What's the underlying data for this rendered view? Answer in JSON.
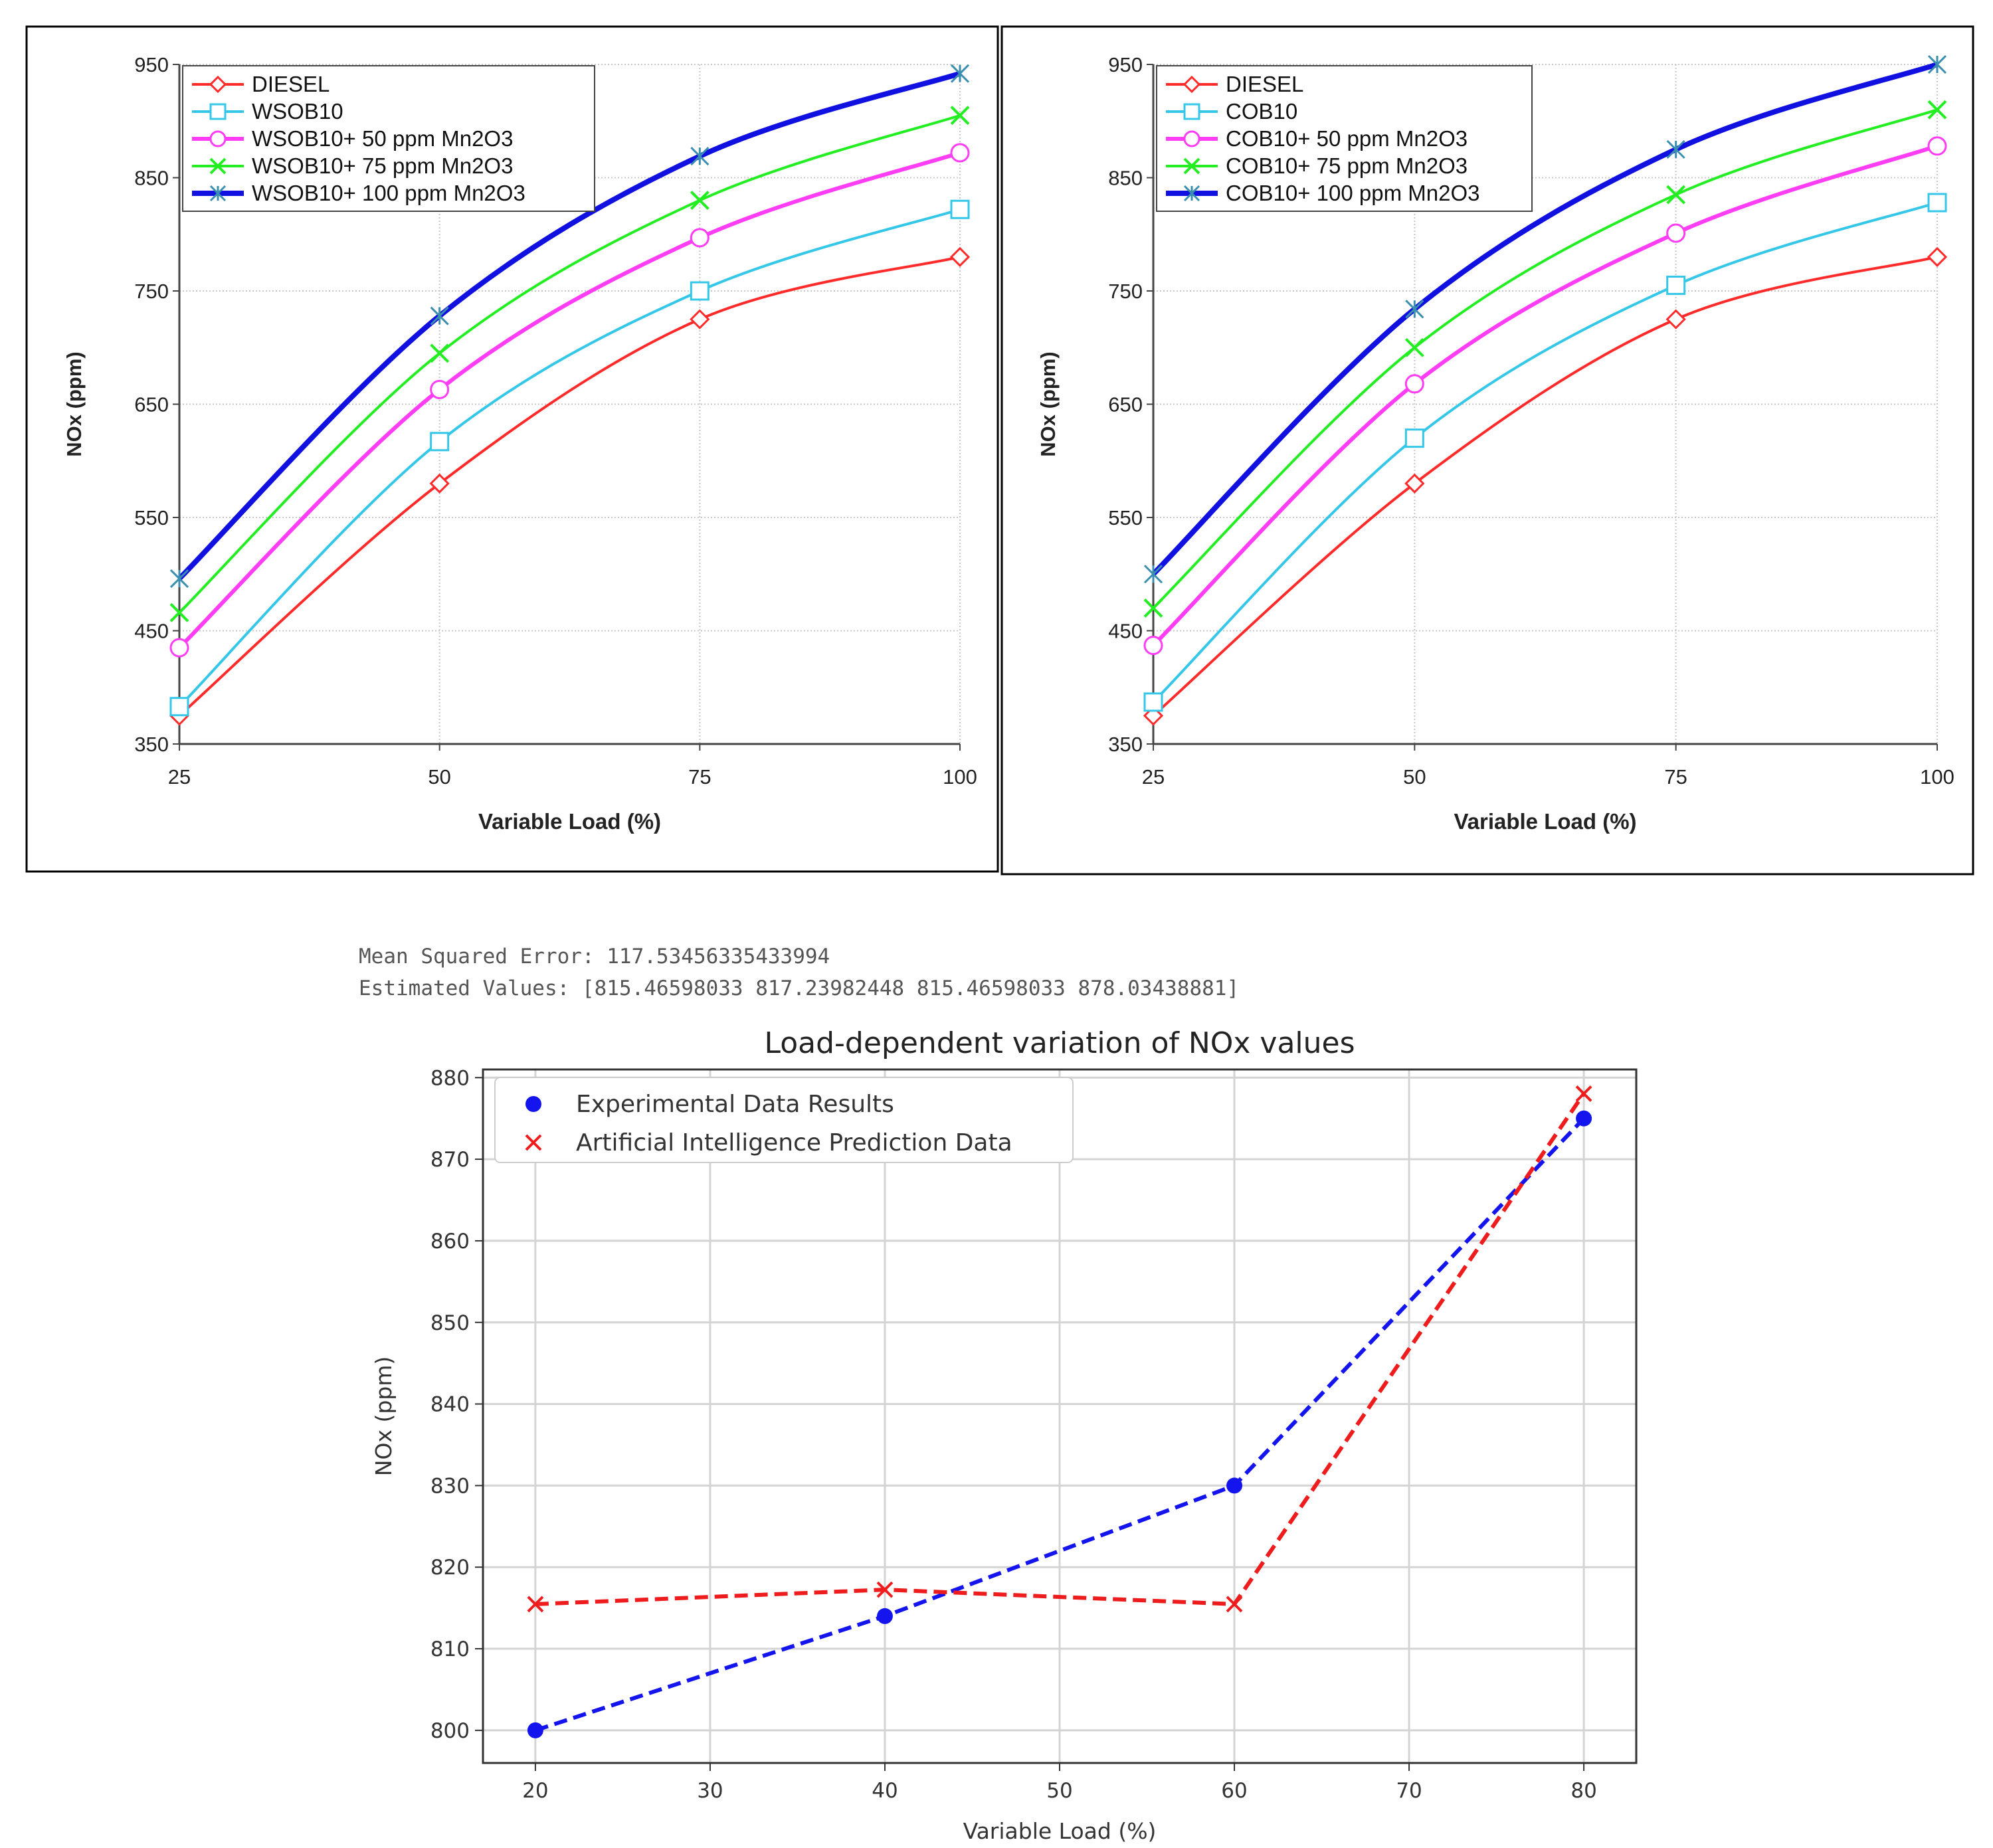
{
  "colors": {
    "diesel": "#ff2a2a",
    "blend": "#35c7e8",
    "mn50": "#ff3df5",
    "mn75": "#22ee22",
    "mn100": "#1010e0",
    "experimental": "#1414ee",
    "prediction": "#ee1c1c"
  },
  "console": {
    "mse": "Mean Squared Error: 117.53456335433994",
    "estimated": "Estimated Values: [815.46598033 817.23982448 815.46598033 878.03438881]"
  },
  "chart_data": [
    {
      "id": "wsob",
      "type": "line",
      "title": "",
      "xlabel": "Variable Load (%)",
      "ylabel": "NOx  (ppm)",
      "x": [
        25,
        50,
        75,
        100
      ],
      "xticks": [
        25,
        50,
        75,
        100
      ],
      "yticks": [
        350,
        450,
        550,
        650,
        750,
        850,
        950
      ],
      "ylim": [
        350,
        950
      ],
      "grid": true,
      "legend": "top-left",
      "series": [
        {
          "name": "DIESEL",
          "values": [
            375,
            580,
            725,
            780
          ],
          "color_key": "diesel",
          "marker": "diamond",
          "width": 2
        },
        {
          "name": "WSOB10",
          "values": [
            383,
            617,
            750,
            822
          ],
          "color_key": "blend",
          "marker": "square",
          "width": 2
        },
        {
          "name": "WSOB10+ 50 ppm Mn2O3",
          "values": [
            435,
            663,
            797,
            872
          ],
          "color_key": "mn50",
          "marker": "circle",
          "width": 3
        },
        {
          "name": "WSOB10+ 75 ppm Mn2O3",
          "values": [
            466,
            695,
            830,
            905
          ],
          "color_key": "mn75",
          "marker": "x",
          "width": 2
        },
        {
          "name": "WSOB10+ 100 ppm Mn2O3",
          "values": [
            496,
            728,
            869,
            942
          ],
          "color_key": "mn100",
          "marker": "star",
          "width": 4
        }
      ]
    },
    {
      "id": "cob",
      "type": "line",
      "title": "",
      "xlabel": "Variable Load (%)",
      "ylabel": "NOx  (ppm)",
      "x": [
        25,
        50,
        75,
        100
      ],
      "xticks": [
        25,
        50,
        75,
        100
      ],
      "yticks": [
        350,
        450,
        550,
        650,
        750,
        850,
        950
      ],
      "ylim": [
        350,
        950
      ],
      "grid": true,
      "legend": "top-left",
      "series": [
        {
          "name": "DIESEL",
          "values": [
            375,
            580,
            725,
            780
          ],
          "color_key": "diesel",
          "marker": "diamond",
          "width": 2
        },
        {
          "name": "COB10",
          "values": [
            387,
            620,
            755,
            828
          ],
          "color_key": "blend",
          "marker": "square",
          "width": 2
        },
        {
          "name": "COB10+ 50 ppm Mn2O3",
          "values": [
            437,
            668,
            801,
            878
          ],
          "color_key": "mn50",
          "marker": "circle",
          "width": 3
        },
        {
          "name": "COB10+ 75 ppm Mn2O3",
          "values": [
            470,
            700,
            835,
            910
          ],
          "color_key": "mn75",
          "marker": "x",
          "width": 2
        },
        {
          "name": "COB10+ 100 ppm Mn2O3",
          "values": [
            500,
            734,
            875,
            950
          ],
          "color_key": "mn100",
          "marker": "star",
          "width": 4
        }
      ]
    },
    {
      "id": "ai",
      "type": "line",
      "title": "Load-dependent variation of NOx values",
      "xlabel": "Variable Load (%)",
      "ylabel": "NOx (ppm)",
      "x": [
        20,
        40,
        60,
        80
      ],
      "xticks": [
        20,
        30,
        40,
        50,
        60,
        70,
        80
      ],
      "yticks": [
        800,
        810,
        820,
        830,
        840,
        850,
        860,
        870,
        880
      ],
      "xlim": [
        17,
        83
      ],
      "ylim": [
        796,
        881
      ],
      "grid": true,
      "legend": "top-left",
      "series": [
        {
          "name": "Experimental Data Results",
          "values": [
            800,
            814,
            830,
            875
          ],
          "color_key": "experimental",
          "marker": "circle"
        },
        {
          "name": "Artificial Intelligence Prediction Data",
          "values": [
            815.46598033,
            817.23982448,
            815.46598033,
            878.03438881
          ],
          "color_key": "prediction",
          "marker": "x"
        }
      ]
    }
  ]
}
